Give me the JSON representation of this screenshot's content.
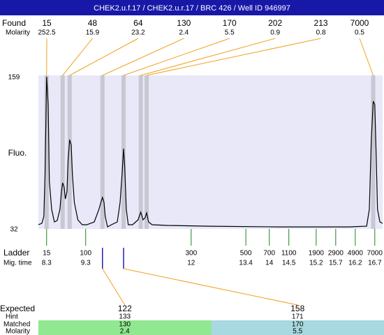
{
  "chart_data": {
    "type": "line",
    "title": "CHEK2.u.f.17 / CHEK2.u.r.17 / BRC 426 / Well ID 946997",
    "y_label": "Fluo.",
    "ylim": [
      32,
      159
    ],
    "yticks": [
      32,
      159
    ],
    "xlim": [
      8.09,
      16.9
    ],
    "trace": {
      "color": "#000000",
      "x": [
        8.09,
        8.18,
        8.23,
        8.26,
        8.3,
        8.34,
        8.37,
        8.43,
        8.5,
        8.57,
        8.64,
        8.68,
        8.71,
        8.75,
        8.78,
        8.82,
        8.85,
        8.89,
        8.93,
        8.96,
        9.01,
        9.1,
        9.21,
        9.33,
        9.52,
        9.64,
        9.69,
        9.73,
        9.77,
        9.8,
        9.86,
        9.96,
        10.11,
        10.18,
        10.23,
        10.27,
        10.3,
        10.34,
        10.39,
        10.5,
        10.64,
        10.71,
        10.77,
        10.82,
        10.86,
        10.91,
        11.0,
        11.39,
        12.46,
        14.25,
        16.04,
        16.49,
        16.56,
        16.61,
        16.66,
        16.7,
        16.74,
        16.77,
        16.83,
        16.9
      ],
      "values": [
        35.5,
        36.7,
        42.5,
        77.4,
        159,
        135.7,
        71.6,
        48.3,
        37.8,
        39,
        48.3,
        62.9,
        70.4,
        66.9,
        57,
        62.9,
        89.1,
        106.5,
        101.9,
        77.4,
        54.1,
        39.6,
        35.5,
        35.5,
        37.8,
        48.3,
        54.1,
        58.2,
        54.1,
        42.5,
        33.7,
        35.5,
        37.8,
        54.1,
        77.4,
        99,
        83.3,
        48.3,
        35.5,
        35.5,
        39.6,
        46,
        39.6,
        41.3,
        45.4,
        37.8,
        35.5,
        34.9,
        34.3,
        33.7,
        33.7,
        34.3,
        48.3,
        106.5,
        138.6,
        135.7,
        89.1,
        48.3,
        37.8,
        36.7
      ]
    },
    "found": {
      "label": "Found",
      "sizes": [
        15,
        48,
        64,
        130,
        170,
        202,
        213,
        7000
      ],
      "molarity_label": "Molarity",
      "molarity": [
        252.5,
        15.9,
        23.2,
        2.4,
        5.5,
        0.9,
        0.8,
        0.5
      ],
      "times": [
        8.3,
        8.71,
        8.89,
        9.73,
        10.27,
        10.71,
        10.86,
        16.66
      ],
      "color": "#f0a020",
      "band_color": "#c8c8d4"
    },
    "ladder": {
      "label": "Ladder",
      "sizes": [
        15,
        100,
        300,
        500,
        700,
        1100,
        1900,
        2900,
        4900,
        7000
      ],
      "time_label": "Mig. time",
      "times": [
        8.3,
        9.3,
        12,
        13.4,
        14,
        14.5,
        15.2,
        15.7,
        16.2,
        16.7
      ],
      "color": "#208020"
    },
    "expected": {
      "label": "Expected",
      "values": [
        122,
        158
      ],
      "hint_label": "Hint",
      "hint": [
        133,
        171
      ],
      "matched_label": "Matched",
      "matched": [
        130,
        170
      ],
      "molarity_label": "Molarity",
      "molarity": [
        2.4,
        5.5
      ],
      "colors": [
        "#90e890",
        "#a8d8e0"
      ]
    }
  }
}
